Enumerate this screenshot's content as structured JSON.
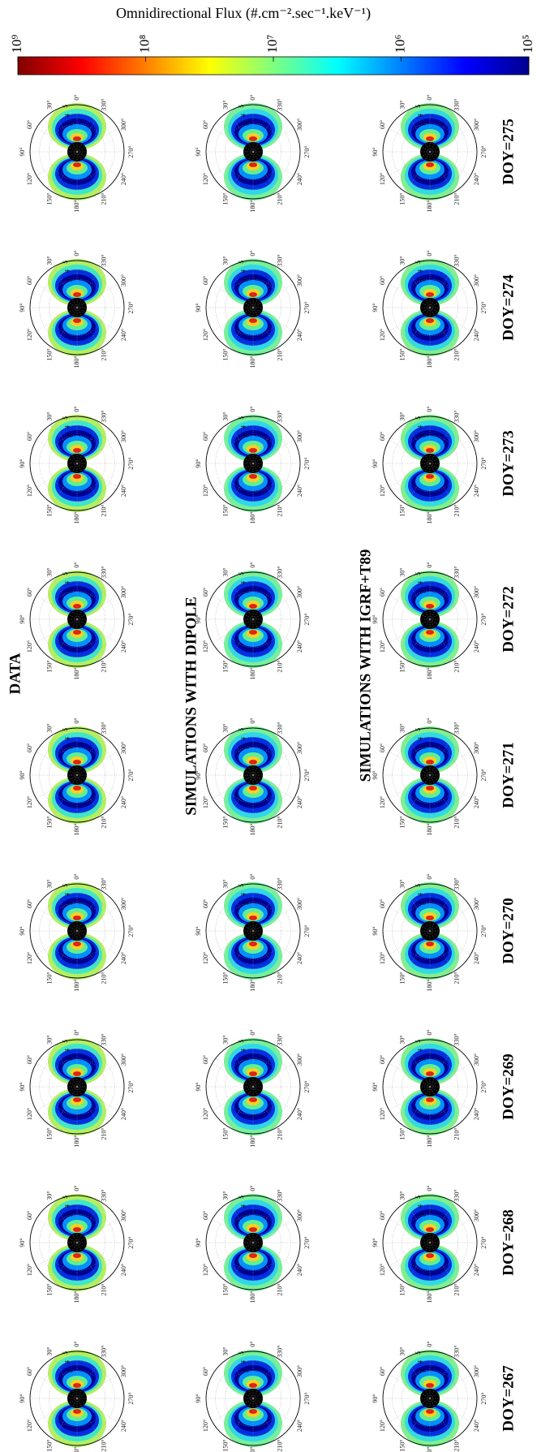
{
  "chart_data": {
    "type": "polar",
    "title": "Omnidirectional Flux (#.cm⁻².sec⁻¹.keV⁻¹)",
    "colorbar": {
      "lim": [
        1000000000,
        100000
      ],
      "log_scale": true,
      "ticks": [
        {
          "value": 1000000000,
          "label": "10⁹"
        },
        {
          "value": 100000000,
          "label": "10⁸"
        },
        {
          "value": 10000000,
          "label": "10⁷"
        },
        {
          "value": 1000000,
          "label": "10⁶"
        },
        {
          "value": 100000,
          "label": "10⁵"
        }
      ]
    },
    "panel_titles": [
      "DATA",
      "SIMULATIONS WITH DIPOLE",
      "SIMULATIONS WITH IGRF+T89"
    ],
    "rows": [
      "DOY=267",
      "DOY=268",
      "DOY=269",
      "DOY=270",
      "DOY=271",
      "DOY=272",
      "DOY=273",
      "DOY=274",
      "DOY=275"
    ],
    "theta_ticks": [
      {
        "value": 0,
        "label": "0°"
      },
      {
        "value": 30,
        "label": "30°"
      },
      {
        "value": 60,
        "label": "60°"
      },
      {
        "value": 90,
        "label": "90°"
      },
      {
        "value": 120,
        "label": "120°"
      },
      {
        "value": 150,
        "label": "150°"
      },
      {
        "value": 180,
        "label": "180°"
      },
      {
        "value": 210,
        "label": "210°"
      },
      {
        "value": 240,
        "label": "240°"
      },
      {
        "value": 270,
        "label": "270°"
      },
      {
        "value": 300,
        "label": "300°"
      },
      {
        "value": 330,
        "label": "330°"
      }
    ],
    "rlim": [
      0,
      5
    ],
    "r_ticks": [
      3,
      4,
      5
    ]
  }
}
